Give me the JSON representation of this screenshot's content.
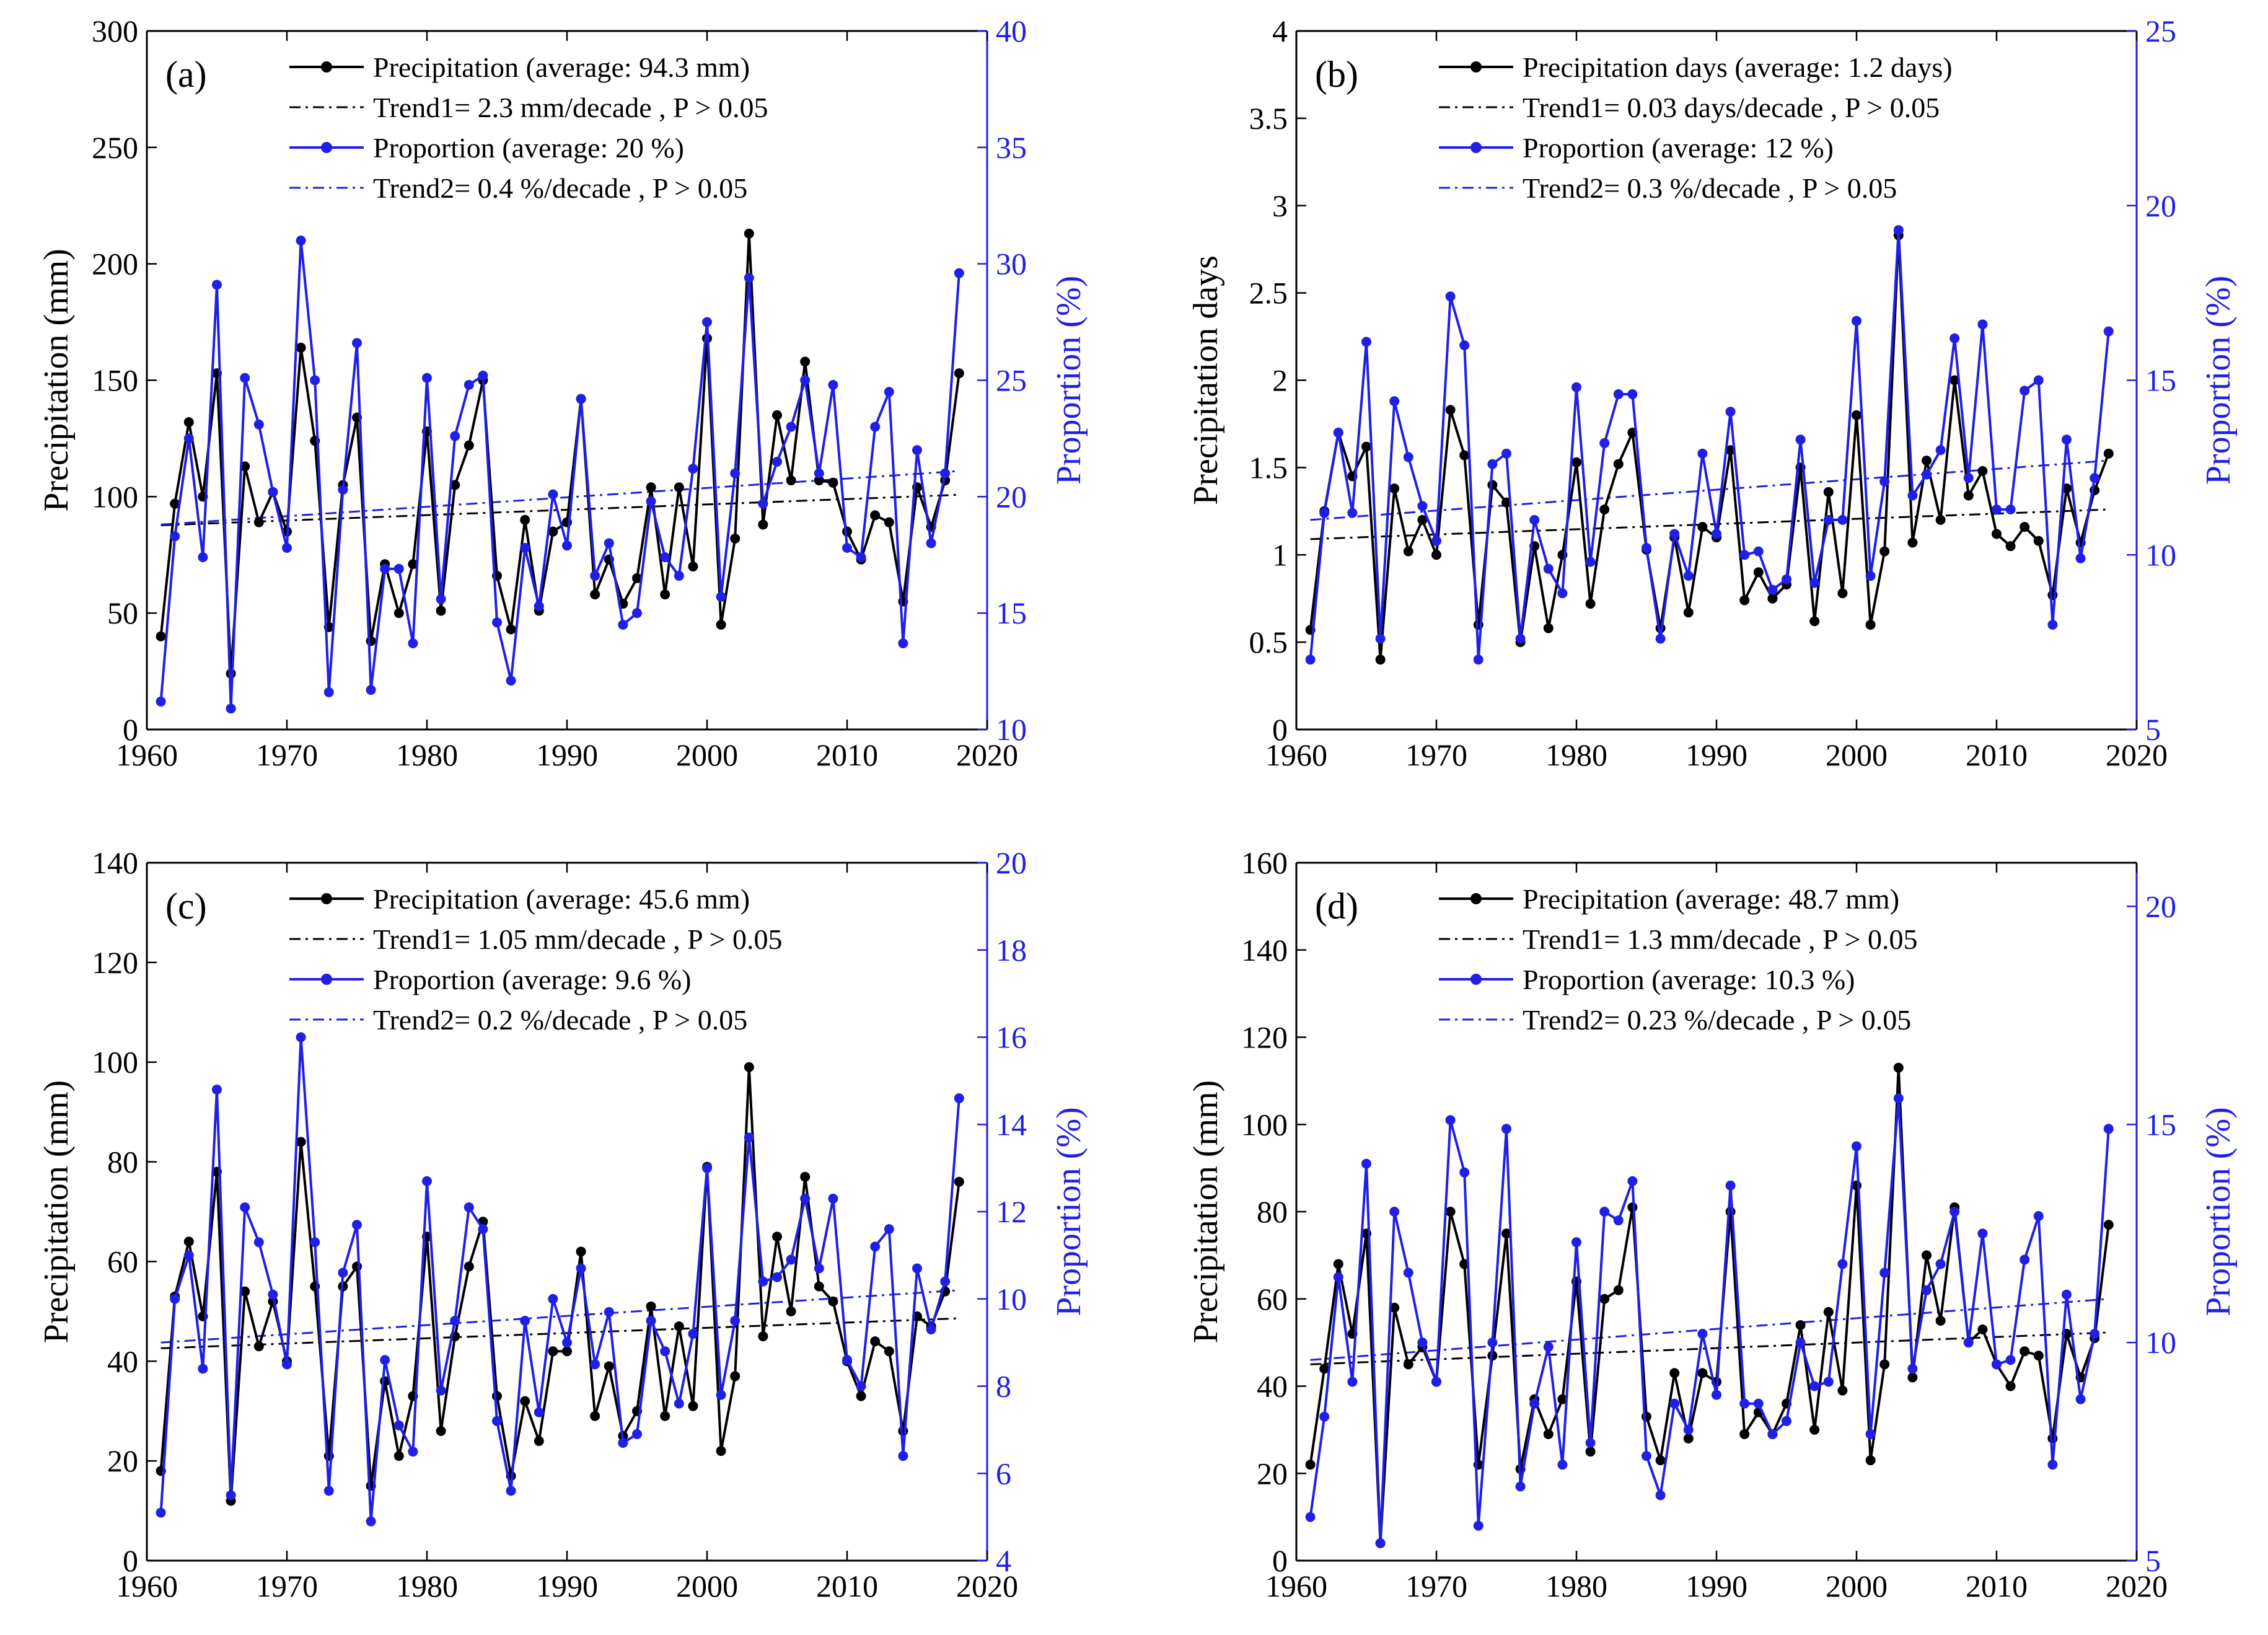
{
  "colors": {
    "precip": "#000000",
    "proportion": "#1f1fe6",
    "trend1": "#000000",
    "trend2": "#1f1fe6"
  },
  "chart_data": [
    {
      "type": "line",
      "panel_label": "(a)",
      "x": [
        1961,
        1962,
        1963,
        1964,
        1965,
        1966,
        1967,
        1968,
        1969,
        1970,
        1971,
        1972,
        1973,
        1974,
        1975,
        1976,
        1977,
        1978,
        1979,
        1980,
        1981,
        1982,
        1983,
        1984,
        1985,
        1986,
        1987,
        1988,
        1989,
        1990,
        1991,
        1992,
        1993,
        1994,
        1995,
        1996,
        1997,
        1998,
        1999,
        2000,
        2001,
        2002,
        2003,
        2004,
        2005,
        2006,
        2007,
        2008,
        2009,
        2010,
        2011,
        2012,
        2013,
        2014,
        2015,
        2016,
        2017,
        2018
      ],
      "xlim": [
        1960,
        2020
      ],
      "xticks": [
        "1960",
        "1970",
        "1980",
        "1990",
        "2000",
        "2010",
        "2020"
      ],
      "ylabel": "Precipitation (mm)",
      "ylim": [
        0,
        300
      ],
      "yticks": [
        "0",
        "50",
        "100",
        "150",
        "200",
        "250",
        "300"
      ],
      "y2label": "Proportion (%)",
      "y2lim": [
        10,
        40
      ],
      "y2ticks": [
        "10",
        "15",
        "20",
        "25",
        "30",
        "35",
        "40"
      ],
      "series": [
        {
          "name": "Precipitation (average: 94.3 mm)",
          "axis": "left",
          "values": [
            40,
            97,
            132,
            100,
            153,
            24,
            113,
            89,
            102,
            85,
            164,
            124,
            44,
            105,
            134,
            38,
            71,
            50,
            71,
            128,
            51,
            105,
            122,
            150,
            66,
            43,
            90,
            51,
            85,
            89,
            142,
            58,
            73,
            54,
            65,
            104,
            58,
            104,
            70,
            168,
            45,
            82,
            213,
            88,
            135,
            107,
            158,
            107,
            106,
            85,
            73,
            92,
            89,
            55,
            104,
            87,
            107,
            153
          ]
        },
        {
          "name": "Proportion (average: 20 %)",
          "axis": "right",
          "values": [
            11.2,
            18.3,
            22.5,
            17.4,
            29.1,
            10.9,
            25.1,
            23.1,
            20.2,
            17.8,
            31.0,
            25.0,
            11.6,
            20.3,
            26.6,
            11.7,
            16.9,
            16.9,
            13.7,
            25.1,
            15.6,
            22.6,
            24.8,
            25.2,
            14.6,
            12.1,
            17.8,
            15.3,
            20.1,
            17.9,
            24.2,
            16.6,
            18.0,
            14.5,
            15.0,
            19.8,
            17.4,
            16.6,
            21.2,
            27.5,
            15.7,
            21.0,
            29.4,
            19.7,
            21.5,
            23.0,
            25.0,
            21.0,
            24.8,
            17.8,
            17.4,
            23.0,
            24.5,
            13.7,
            22.0,
            18.0,
            21.0,
            29.6
          ]
        },
        {
          "name": "Trend1= 2.3 mm/decade , P > 0.05",
          "axis": "left",
          "style": "dash-dot",
          "x": [
            1961,
            2018
          ],
          "values": [
            87.7,
            100.8
          ]
        },
        {
          "name": "Trend2= 0.4 %/decade , P > 0.05",
          "axis": "right",
          "style": "dash-dot",
          "x": [
            1961,
            2018
          ],
          "values": [
            18.8,
            21.1
          ]
        }
      ]
    },
    {
      "type": "line",
      "panel_label": "(b)",
      "x": [
        1961,
        1962,
        1963,
        1964,
        1965,
        1966,
        1967,
        1968,
        1969,
        1970,
        1971,
        1972,
        1973,
        1974,
        1975,
        1976,
        1977,
        1978,
        1979,
        1980,
        1981,
        1982,
        1983,
        1984,
        1985,
        1986,
        1987,
        1988,
        1989,
        1990,
        1991,
        1992,
        1993,
        1994,
        1995,
        1996,
        1997,
        1998,
        1999,
        2000,
        2001,
        2002,
        2003,
        2004,
        2005,
        2006,
        2007,
        2008,
        2009,
        2010,
        2011,
        2012,
        2013,
        2014,
        2015,
        2016,
        2017,
        2018
      ],
      "xlim": [
        1960,
        2020
      ],
      "xticks": [
        "1960",
        "1970",
        "1980",
        "1990",
        "2000",
        "2010",
        "2020"
      ],
      "ylabel": "Precipitation days",
      "ylim": [
        0,
        4
      ],
      "yticks": [
        "0",
        "0.5",
        "1",
        "1.5",
        "2",
        "2.5",
        "3",
        "3.5",
        "4"
      ],
      "y2label": "Proportion (%)",
      "y2lim": [
        5,
        25
      ],
      "y2ticks": [
        "5",
        "10",
        "15",
        "20",
        "25"
      ],
      "series": [
        {
          "name": "Precipitation days (average: 1.2 days)",
          "axis": "left",
          "values": [
            0.57,
            1.25,
            1.7,
            1.45,
            1.62,
            0.4,
            1.38,
            1.02,
            1.2,
            1.0,
            1.83,
            1.57,
            0.6,
            1.4,
            1.3,
            0.5,
            1.05,
            0.58,
            1.0,
            1.53,
            0.72,
            1.26,
            1.52,
            1.7,
            1.03,
            0.58,
            1.1,
            0.67,
            1.16,
            1.1,
            1.6,
            0.74,
            0.9,
            0.75,
            0.83,
            1.5,
            0.62,
            1.36,
            0.78,
            1.8,
            0.6,
            1.02,
            2.83,
            1.07,
            1.54,
            1.2,
            2.0,
            1.34,
            1.48,
            1.12,
            1.05,
            1.16,
            1.08,
            0.77,
            1.38,
            1.07,
            1.37,
            1.58
          ]
        },
        {
          "name": "Proportion (average: 12 %)",
          "axis": "right",
          "values": [
            7.0,
            11.2,
            13.5,
            11.2,
            16.1,
            7.6,
            14.4,
            12.8,
            11.4,
            10.4,
            17.4,
            16.0,
            7.0,
            12.6,
            12.9,
            7.6,
            11.0,
            9.6,
            8.9,
            14.8,
            9.8,
            13.2,
            14.6,
            14.6,
            10.2,
            7.6,
            10.6,
            9.4,
            12.9,
            10.6,
            14.1,
            10.0,
            10.1,
            9.0,
            9.3,
            13.3,
            9.2,
            11.0,
            11.0,
            16.7,
            9.4,
            12.1,
            19.3,
            11.7,
            12.3,
            13.0,
            16.2,
            12.2,
            16.6,
            11.3,
            11.3,
            14.7,
            15.0,
            8.0,
            13.3,
            9.9,
            12.2,
            16.4
          ]
        },
        {
          "name": "Trend1= 0.03 days/decade , P > 0.05",
          "axis": "left",
          "style": "dash-dot",
          "x": [
            1961,
            2018
          ],
          "values": [
            1.09,
            1.26
          ]
        },
        {
          "name": "Trend2= 0.3 %/decade , P > 0.05",
          "axis": "right",
          "style": "dash-dot",
          "x": [
            1961,
            2018
          ],
          "values": [
            11.0,
            12.7
          ]
        }
      ]
    },
    {
      "type": "line",
      "panel_label": "(c)",
      "x": [
        1961,
        1962,
        1963,
        1964,
        1965,
        1966,
        1967,
        1968,
        1969,
        1970,
        1971,
        1972,
        1973,
        1974,
        1975,
        1976,
        1977,
        1978,
        1979,
        1980,
        1981,
        1982,
        1983,
        1984,
        1985,
        1986,
        1987,
        1988,
        1989,
        1990,
        1991,
        1992,
        1993,
        1994,
        1995,
        1996,
        1997,
        1998,
        1999,
        2000,
        2001,
        2002,
        2003,
        2004,
        2005,
        2006,
        2007,
        2008,
        2009,
        2010,
        2011,
        2012,
        2013,
        2014,
        2015,
        2016,
        2017,
        2018
      ],
      "xlim": [
        1960,
        2020
      ],
      "xticks": [
        "1960",
        "1970",
        "1980",
        "1990",
        "2000",
        "2010",
        "2020"
      ],
      "ylabel": "Precipitation (mm)",
      "ylim": [
        0,
        140
      ],
      "yticks": [
        "0",
        "20",
        "40",
        "60",
        "80",
        "100",
        "120",
        "140"
      ],
      "y2label": "Proportion (%)",
      "y2lim": [
        4,
        20
      ],
      "y2ticks": [
        "4",
        "6",
        "8",
        "10",
        "12",
        "14",
        "16",
        "18",
        "20"
      ],
      "series": [
        {
          "name": "Precipitation (average: 45.6 mm)",
          "axis": "left",
          "values": [
            18,
            53,
            64,
            49,
            78,
            12,
            54,
            43,
            52,
            40,
            84,
            55,
            21,
            55,
            59,
            15,
            36,
            21,
            33,
            65,
            26,
            45,
            59,
            68,
            33,
            17,
            32,
            24,
            42,
            42,
            62,
            29,
            39,
            25,
            30,
            51,
            29,
            47,
            31,
            79,
            22,
            37,
            99,
            45,
            65,
            50,
            77,
            55,
            52,
            40,
            33,
            44,
            42,
            26,
            49,
            47,
            54,
            76
          ]
        },
        {
          "name": "Proportion (average: 9.6 %)",
          "axis": "right",
          "values": [
            5.1,
            10.0,
            11.0,
            8.4,
            14.8,
            5.5,
            12.1,
            11.3,
            10.1,
            8.5,
            16.0,
            11.3,
            5.6,
            10.6,
            11.7,
            4.9,
            8.6,
            7.1,
            6.5,
            12.7,
            7.9,
            9.5,
            12.1,
            11.6,
            7.2,
            5.6,
            9.5,
            7.4,
            10.0,
            9.0,
            10.7,
            8.5,
            9.7,
            6.7,
            6.9,
            9.5,
            8.8,
            7.6,
            9.2,
            13.0,
            7.8,
            9.5,
            13.7,
            10.4,
            10.5,
            10.9,
            12.3,
            10.7,
            12.3,
            8.6,
            8.0,
            11.2,
            11.6,
            6.4,
            10.7,
            9.3,
            10.4,
            14.6
          ]
        },
        {
          "name": "Trend1= 1.05 mm/decade , P > 0.05",
          "axis": "left",
          "style": "dash-dot",
          "x": [
            1961,
            2018
          ],
          "values": [
            42.6,
            48.6
          ]
        },
        {
          "name": "Trend2= 0.2 %/decade , P > 0.05",
          "axis": "right",
          "style": "dash-dot",
          "x": [
            1961,
            2018
          ],
          "values": [
            9.0,
            10.2
          ]
        }
      ]
    },
    {
      "type": "line",
      "panel_label": "(d)",
      "x": [
        1961,
        1962,
        1963,
        1964,
        1965,
        1966,
        1967,
        1968,
        1969,
        1970,
        1971,
        1972,
        1973,
        1974,
        1975,
        1976,
        1977,
        1978,
        1979,
        1980,
        1981,
        1982,
        1983,
        1984,
        1985,
        1986,
        1987,
        1988,
        1989,
        1990,
        1991,
        1992,
        1993,
        1994,
        1995,
        1996,
        1997,
        1998,
        1999,
        2000,
        2001,
        2002,
        2003,
        2004,
        2005,
        2006,
        2007,
        2008,
        2009,
        2010,
        2011,
        2012,
        2013,
        2014,
        2015,
        2016,
        2017,
        2018
      ],
      "xlim": [
        1960,
        2020
      ],
      "xticks": [
        "1960",
        "1970",
        "1980",
        "1990",
        "2000",
        "2010",
        "2020"
      ],
      "ylabel": "Precipitation (mm)",
      "ylim": [
        0,
        160
      ],
      "yticks": [
        "0",
        "20",
        "40",
        "60",
        "80",
        "100",
        "120",
        "140",
        "160"
      ],
      "y2label": "Proportion (%)",
      "y2lim": [
        5,
        21
      ],
      "y2ticks": [
        "5",
        "10",
        "15",
        "20"
      ],
      "series": [
        {
          "name": "Precipitation (average: 48.7 mm)",
          "axis": "left",
          "values": [
            22,
            44,
            68,
            52,
            75,
            4,
            58,
            45,
            49,
            41,
            80,
            68,
            22,
            47,
            75,
            21,
            37,
            29,
            37,
            64,
            25,
            60,
            62,
            81,
            33,
            23,
            43,
            28,
            43,
            41,
            80,
            29,
            34,
            29,
            36,
            54,
            30,
            57,
            39,
            86,
            23,
            45,
            113,
            42,
            70,
            55,
            81,
            50,
            53,
            45,
            40,
            48,
            47,
            28,
            52,
            42,
            51,
            77
          ]
        },
        {
          "name": "Proportion (average: 10.3 %)",
          "axis": "right",
          "values": [
            6.0,
            8.3,
            11.5,
            9.1,
            14.1,
            5.4,
            13.0,
            11.6,
            10.0,
            9.1,
            15.1,
            13.9,
            5.8,
            10.0,
            14.9,
            6.7,
            8.6,
            9.9,
            7.2,
            12.3,
            7.7,
            13.0,
            12.8,
            13.7,
            7.4,
            6.5,
            8.6,
            8.0,
            10.2,
            8.8,
            13.6,
            8.6,
            8.6,
            7.9,
            8.2,
            10.0,
            9.0,
            9.1,
            11.8,
            14.5,
            7.9,
            11.6,
            15.6,
            9.4,
            11.2,
            11.8,
            13.0,
            10.0,
            12.5,
            9.5,
            9.6,
            11.9,
            12.9,
            7.2,
            11.1,
            8.7,
            10.2,
            14.9
          ]
        },
        {
          "name": "Trend1= 1.3 mm/decade , P > 0.05",
          "axis": "left",
          "style": "dash-dot",
          "x": [
            1961,
            2018
          ],
          "values": [
            45.0,
            52.3
          ]
        },
        {
          "name": "Trend2= 0.23 %/decade , P > 0.05",
          "axis": "right",
          "style": "dash-dot",
          "x": [
            1961,
            2018
          ],
          "values": [
            9.6,
            11.0
          ]
        }
      ]
    }
  ]
}
